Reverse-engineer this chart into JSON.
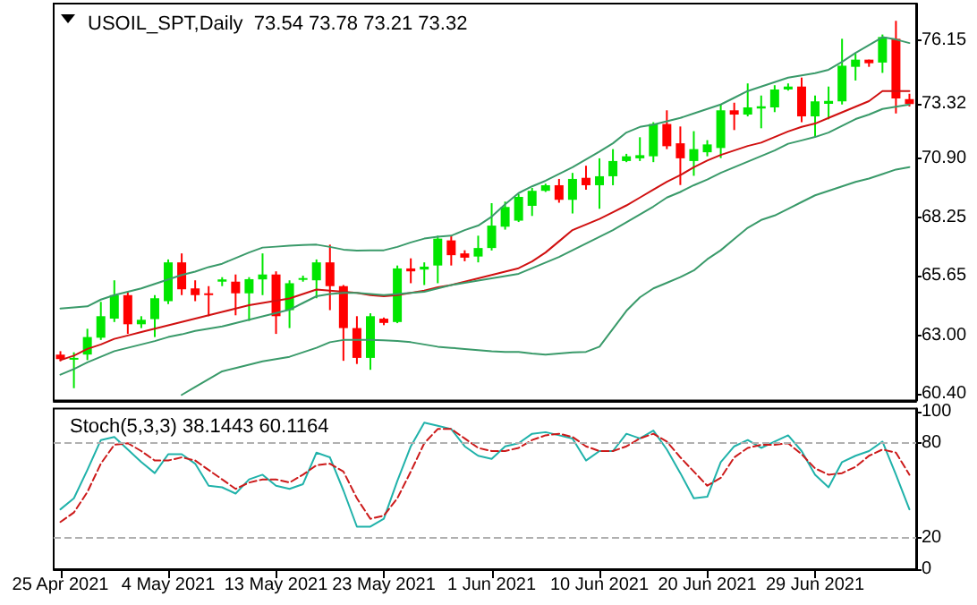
{
  "chart_data": [
    {
      "type": "candlestick",
      "title": "USOIL_SPT,Daily  73.54 73.78 73.21 73.32",
      "marker": "none",
      "categories": [
        null,
        null,
        null,
        null,
        null,
        null,
        null,
        null,
        null,
        null,
        null,
        null,
        null,
        null,
        null,
        null,
        null,
        null,
        null,
        null,
        null,
        null,
        null,
        null,
        null,
        null,
        null,
        null,
        null,
        null,
        null,
        null,
        null,
        null,
        null,
        null,
        null,
        null,
        null,
        null,
        null,
        null,
        null,
        null,
        null,
        null,
        null,
        null,
        null,
        null,
        null,
        null,
        null,
        null,
        null,
        null,
        null,
        null,
        null,
        null,
        null,
        null,
        null,
        null
      ],
      "ohlc": [
        [
          62.15,
          62.3,
          61.85,
          61.95
        ],
        [
          61.95,
          62.25,
          60.65,
          62.0
        ],
        [
          62.15,
          63.3,
          61.9,
          62.93
        ],
        [
          62.9,
          64.5,
          62.8,
          63.86
        ],
        [
          63.75,
          65.46,
          63.6,
          64.8
        ],
        [
          64.8,
          64.93,
          63.07,
          63.5
        ],
        [
          63.5,
          63.86,
          63.33,
          63.7
        ],
        [
          63.73,
          64.8,
          62.93,
          64.66
        ],
        [
          64.53,
          66.39,
          64.4,
          66.26
        ],
        [
          66.26,
          66.66,
          64.8,
          65.06
        ],
        [
          65.1,
          65.46,
          64.53,
          64.8
        ],
        [
          64.88,
          65.2,
          63.86,
          64.83
        ],
        [
          65.4,
          65.6,
          65.2,
          65.5
        ],
        [
          65.4,
          65.72,
          63.9,
          64.88
        ],
        [
          64.88,
          65.6,
          63.65,
          65.51
        ],
        [
          65.5,
          66.66,
          64.8,
          65.72
        ],
        [
          65.72,
          65.86,
          63.07,
          63.86
        ],
        [
          64.13,
          65.46,
          63.33,
          65.33
        ],
        [
          65.54,
          65.67,
          65.4,
          65.56
        ],
        [
          65.46,
          66.39,
          64.66,
          66.26
        ],
        [
          66.26,
          67.05,
          64.13,
          65.2
        ],
        [
          65.2,
          65.25,
          61.87,
          63.33
        ],
        [
          63.33,
          63.86,
          61.73,
          62.0
        ],
        [
          62.0,
          63.99,
          61.47,
          63.86
        ],
        [
          63.75,
          63.8,
          63.46,
          63.56
        ],
        [
          63.6,
          66.12,
          63.55,
          65.99
        ],
        [
          65.99,
          66.44,
          65.33,
          65.86
        ],
        [
          65.94,
          66.26,
          65.25,
          66.07
        ],
        [
          66.12,
          67.45,
          65.33,
          67.32
        ],
        [
          67.24,
          67.45,
          66.12,
          66.58
        ],
        [
          66.66,
          66.8,
          66.31,
          66.47
        ],
        [
          66.52,
          67.45,
          66.26,
          66.9
        ],
        [
          66.9,
          68.9,
          66.79,
          67.9
        ],
        [
          67.85,
          68.97,
          67.72,
          68.73
        ],
        [
          68.12,
          69.3,
          68.06,
          69.18
        ],
        [
          68.78,
          69.58,
          68.33,
          69.45
        ],
        [
          69.45,
          69.77,
          69.4,
          69.7
        ],
        [
          69.7,
          69.98,
          68.92,
          69.05
        ],
        [
          69.05,
          70.25,
          68.44,
          69.98
        ],
        [
          70.03,
          70.57,
          69.5,
          69.7
        ],
        [
          69.7,
          70.9,
          68.65,
          70.1
        ],
        [
          70.1,
          71.31,
          69.7,
          70.78
        ],
        [
          70.78,
          71.1,
          70.73,
          70.99
        ],
        [
          70.9,
          71.84,
          70.78,
          71.04
        ],
        [
          70.99,
          72.51,
          70.73,
          72.43
        ],
        [
          72.43,
          73.04,
          71.31,
          71.44
        ],
        [
          71.57,
          72.32,
          69.71,
          70.9
        ],
        [
          70.78,
          72.11,
          70.12,
          71.31
        ],
        [
          71.17,
          71.71,
          70.99,
          71.52
        ],
        [
          71.36,
          73.3,
          70.91,
          73.04
        ],
        [
          73.04,
          73.38,
          72.16,
          72.85
        ],
        [
          72.85,
          74.24,
          72.77,
          73.17
        ],
        [
          73.12,
          73.7,
          72.24,
          73.22
        ],
        [
          73.17,
          74.16,
          72.96,
          73.97
        ],
        [
          73.97,
          74.24,
          73.92,
          74.1
        ],
        [
          74.1,
          74.5,
          72.51,
          72.77
        ],
        [
          72.77,
          73.7,
          71.84,
          73.44
        ],
        [
          73.33,
          74.1,
          72.64,
          73.46
        ],
        [
          73.44,
          76.23,
          73.3,
          75.03
        ],
        [
          74.98,
          75.56,
          74.37,
          75.3
        ],
        [
          75.3,
          75.3,
          74.98,
          75.14
        ],
        [
          75.17,
          76.42,
          74.71,
          76.31
        ],
        [
          76.23,
          77.03,
          72.9,
          73.57
        ],
        [
          73.54,
          73.78,
          73.21,
          73.32
        ]
      ],
      "colors": [
        "#ff0000",
        "#00e600",
        "#00e600",
        "#00e600",
        "#00e600",
        "#ff0000",
        "#00e600",
        "#00e600",
        "#00e600",
        "#ff0000",
        "#ff0000",
        "#ff0000",
        "#00e600",
        "#ff0000",
        "#00e600",
        "#00e600",
        "#ff0000",
        "#00e600",
        "#00e600",
        "#00e600",
        "#ff0000",
        "#ff0000",
        "#ff0000",
        "#00e600",
        "#ff0000",
        "#00e600",
        "#ff0000",
        "#00e600",
        "#00e600",
        "#ff0000",
        "#ff0000",
        "#00e600",
        "#00e600",
        "#00e600",
        "#00e600",
        "#00e600",
        "#00e600",
        "#ff0000",
        "#00e600",
        "#ff0000",
        "#00e600",
        "#00e600",
        "#00e600",
        "#00e600",
        "#00e600",
        "#ff0000",
        "#ff0000",
        "#00e600",
        "#00e600",
        "#00e600",
        "#ff0000",
        "#00e600",
        "#00e600",
        "#00e600",
        "#00e600",
        "#ff0000",
        "#00e600",
        "#00e600",
        "#00e600",
        "#00e600",
        "#ff0000",
        "#00e600",
        "#ff0000",
        "#ff0000"
      ],
      "series": [
        {
          "type": "line",
          "color": "#3a9a6a",
          "values": [
            64.2,
            64.25,
            64.3,
            64.6,
            64.8,
            64.95,
            65.1,
            65.3,
            65.5,
            65.7,
            65.85,
            66.05,
            66.2,
            66.45,
            66.7,
            66.92,
            66.96,
            67.0,
            67.03,
            67.05,
            66.95,
            66.83,
            66.79,
            66.8,
            66.8,
            66.95,
            67.15,
            67.32,
            67.4,
            67.45,
            67.7,
            67.9,
            68.3,
            68.85,
            69.35,
            69.65,
            69.9,
            70.2,
            70.5,
            70.85,
            71.2,
            71.57,
            72.05,
            72.3,
            72.4,
            72.55,
            72.7,
            72.9,
            73.1,
            73.3,
            73.6,
            73.9,
            74.1,
            74.3,
            74.5,
            74.6,
            74.7,
            74.85,
            75.2,
            75.6,
            75.95,
            76.3,
            76.2,
            76.04
          ]
        },
        {
          "type": "line",
          "color": "#d01010",
          "values": [
            61.9,
            62.1,
            62.4,
            62.6,
            62.85,
            63.0,
            63.15,
            63.3,
            63.45,
            63.6,
            63.75,
            63.9,
            64.05,
            64.2,
            64.35,
            64.45,
            64.55,
            64.65,
            64.85,
            65.05,
            65.0,
            64.95,
            64.9,
            64.8,
            64.75,
            64.8,
            64.9,
            65.0,
            65.15,
            65.25,
            65.4,
            65.55,
            65.7,
            65.85,
            66.0,
            66.3,
            66.7,
            67.2,
            67.7,
            67.95,
            68.2,
            68.5,
            68.8,
            69.15,
            69.5,
            69.85,
            70.15,
            70.5,
            70.8,
            71.05,
            71.25,
            71.45,
            71.6,
            71.85,
            72.1,
            72.3,
            72.45,
            72.7,
            72.95,
            73.2,
            73.45,
            73.9,
            73.9,
            73.9
          ]
        },
        {
          "type": "line",
          "color": "#3a9a6a",
          "values": [
            61.25,
            61.5,
            61.8,
            62.05,
            62.3,
            62.45,
            62.6,
            62.75,
            62.93,
            63.05,
            63.2,
            63.3,
            63.4,
            63.55,
            63.7,
            63.85,
            64.0,
            64.15,
            64.45,
            64.75,
            64.85,
            64.9,
            64.9,
            64.85,
            64.8,
            64.85,
            64.9,
            64.95,
            65.1,
            65.25,
            65.35,
            65.45,
            65.55,
            65.65,
            65.75,
            66.0,
            66.25,
            66.5,
            66.8,
            67.1,
            67.4,
            67.7,
            68.05,
            68.4,
            68.75,
            69.15,
            69.4,
            69.7,
            69.95,
            70.25,
            70.5,
            70.75,
            71.0,
            71.25,
            71.55,
            71.7,
            71.85,
            72.05,
            72.35,
            72.65,
            72.85,
            73.1,
            73.2,
            73.3
          ]
        },
        {
          "type": "line",
          "color": "#3a9a6a",
          "values": [
            null,
            null,
            null,
            null,
            null,
            null,
            null,
            null,
            null,
            60.35,
            60.7,
            61.05,
            61.4,
            61.55,
            61.7,
            61.85,
            61.95,
            62.05,
            62.25,
            62.45,
            62.7,
            62.8,
            62.8,
            62.8,
            62.78,
            62.75,
            62.7,
            62.6,
            62.5,
            62.45,
            62.4,
            62.35,
            62.3,
            62.27,
            62.27,
            62.2,
            62.15,
            62.2,
            62.25,
            62.27,
            62.5,
            63.3,
            64.1,
            64.7,
            65.1,
            65.35,
            65.6,
            65.9,
            66.4,
            66.8,
            67.3,
            67.8,
            68.15,
            68.35,
            68.65,
            68.95,
            69.25,
            69.45,
            69.65,
            69.85,
            70.0,
            70.2,
            70.4,
            70.51
          ]
        }
      ],
      "ylim": [
        60.1,
        77.8
      ],
      "yticks": [
        {
          "value": 60.4,
          "label": "60.40"
        },
        {
          "value": 63,
          "label": "63.00"
        },
        {
          "value": 65.65,
          "label": "65.65"
        },
        {
          "value": 68.25,
          "label": "68.25"
        },
        {
          "value": 70.9,
          "label": "70.90"
        },
        {
          "value": 73.32,
          "label": "73.32"
        },
        {
          "value": 76.15,
          "label": "76.15"
        }
      ]
    },
    {
      "type": "line",
      "title": "Stoch(5,3,3) 38.1443 60.1164",
      "marker": "none",
      "categories": [
        "25 Apr 2021",
        null,
        null,
        null,
        null,
        null,
        null,
        null,
        "4 May 2021",
        null,
        null,
        null,
        null,
        null,
        null,
        null,
        "13 May 2021",
        null,
        null,
        null,
        null,
        null,
        null,
        null,
        "23 May 2021",
        null,
        null,
        null,
        null,
        null,
        null,
        null,
        "1 Jun 2021",
        null,
        null,
        null,
        null,
        null,
        null,
        null,
        "10 Jun 2021",
        null,
        null,
        null,
        null,
        null,
        null,
        null,
        "20 Jun 2021",
        null,
        null,
        null,
        null,
        null,
        null,
        null,
        "29 Jun 2021",
        null,
        null,
        null,
        null,
        null,
        null,
        null
      ],
      "series": [
        {
          "color": "#20b2aa",
          "line_style": "solid",
          "values": [
            38,
            45,
            63,
            82,
            84,
            76,
            68,
            61,
            73,
            73,
            67,
            53,
            52,
            48,
            57,
            60,
            53,
            51,
            54,
            74,
            71,
            50,
            27,
            27,
            32,
            56,
            78,
            93,
            91,
            89,
            78,
            72,
            70,
            78,
            80,
            86,
            87,
            85,
            83,
            69,
            75,
            75,
            86,
            83,
            88,
            76,
            61,
            45,
            46,
            68,
            78,
            82,
            77,
            81,
            85,
            75,
            60,
            52,
            68,
            72,
            75,
            81,
            60,
            38
          ]
        },
        {
          "color": "#cc1a1a",
          "line_style": "dashed",
          "values": [
            30,
            36,
            49,
            67,
            79,
            80,
            75,
            69,
            69,
            71,
            69,
            63,
            57,
            51,
            55,
            57,
            57,
            55,
            60,
            66,
            67,
            62,
            45,
            32,
            34,
            45,
            62,
            80,
            89,
            89,
            83,
            77,
            75,
            75,
            77,
            82,
            85,
            86,
            84,
            78,
            75,
            75,
            78,
            83,
            86,
            81,
            71,
            62,
            53,
            58,
            71,
            77,
            79,
            79,
            80,
            73,
            64,
            60,
            61,
            65,
            72,
            76,
            74,
            60
          ]
        }
      ],
      "ylim": [
        0,
        102
      ],
      "yticks": [
        0,
        20,
        80,
        100
      ],
      "ref_lines": [
        {
          "axis": "y",
          "value": 20,
          "color": "#b0b0b0",
          "line_style": "dashed"
        },
        {
          "axis": "y",
          "value": 80,
          "color": "#b0b0b0",
          "line_style": "dashed"
        }
      ]
    }
  ]
}
